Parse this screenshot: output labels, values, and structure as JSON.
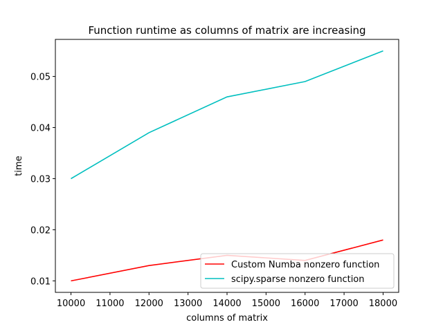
{
  "chart_data": {
    "type": "line",
    "title": "Function runtime as columns of matrix are increasing",
    "xlabel": "columns of matrix",
    "ylabel": "time",
    "x": [
      10000,
      12000,
      14000,
      16000,
      18000
    ],
    "xlim": [
      9600,
      18400
    ],
    "ylim": [
      0.00775,
      0.05725
    ],
    "xticks": [
      10000,
      11000,
      12000,
      13000,
      14000,
      15000,
      16000,
      17000,
      18000
    ],
    "yticks": [
      0.01,
      0.02,
      0.03,
      0.04,
      0.05
    ],
    "ytick_labels": [
      "0.01",
      "0.02",
      "0.03",
      "0.04",
      "0.05"
    ],
    "grid": false,
    "legend_position": "lower right",
    "series": [
      {
        "name": "Custom Numba nonzero function",
        "color": "#ff0000",
        "values": [
          0.01,
          0.013,
          0.015,
          0.014,
          0.018
        ]
      },
      {
        "name": "scipy.sparse nonzero function",
        "color": "#00bfbf",
        "values": [
          0.03,
          0.039,
          0.046,
          0.049,
          0.055
        ]
      }
    ]
  }
}
